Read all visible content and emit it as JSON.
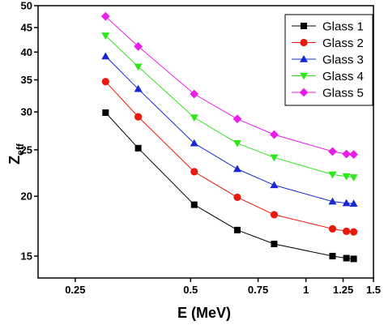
{
  "chart_data": {
    "type": "line",
    "title": "",
    "xlabel": "E (MeV)",
    "ylabel_main": "Z",
    "ylabel_sub": "eff",
    "x_scale": "log",
    "y_scale": "log",
    "xlim": [
      0.2,
      1.5
    ],
    "ylim": [
      13.5,
      50
    ],
    "x_ticks": [
      0.25,
      0.5,
      0.75,
      1,
      1.25,
      1.5
    ],
    "x_tick_labels": [
      "0.25",
      "0.5",
      "0.75",
      "1",
      "1.25",
      "1.5"
    ],
    "y_ticks": [
      15,
      20,
      25,
      30,
      35,
      40,
      45,
      50
    ],
    "y_tick_labels": [
      "15",
      "20",
      "25",
      "30",
      "35",
      "40",
      "45",
      "50"
    ],
    "legend_position": "top-right",
    "x": [
      0.3,
      0.365,
      0.511,
      0.662,
      0.8261,
      1.173,
      1.275,
      1.332
    ],
    "series": [
      {
        "name": "Glass 1",
        "color": "#000000",
        "marker": "square",
        "values": [
          29.9,
          25.2,
          19.2,
          17.0,
          15.9,
          15.0,
          14.85,
          14.8
        ]
      },
      {
        "name": "Glass 2",
        "color": "#e8190e",
        "marker": "circle",
        "values": [
          34.7,
          29.3,
          22.5,
          19.9,
          18.3,
          17.1,
          16.9,
          16.85
        ]
      },
      {
        "name": "Glass 3",
        "color": "#1528d1",
        "marker": "triangle-up",
        "values": [
          39.2,
          33.5,
          25.8,
          22.8,
          21.1,
          19.5,
          19.35,
          19.3
        ]
      },
      {
        "name": "Glass 4",
        "color": "#2ee61a",
        "marker": "triangle-down",
        "values": [
          43.3,
          37.3,
          29.2,
          25.8,
          24.1,
          22.2,
          22.0,
          21.9
        ]
      },
      {
        "name": "Glass 5",
        "color": "#e81ee8",
        "marker": "diamond",
        "values": [
          47.5,
          41.1,
          32.7,
          29.0,
          26.9,
          24.8,
          24.5,
          24.45
        ]
      }
    ]
  }
}
